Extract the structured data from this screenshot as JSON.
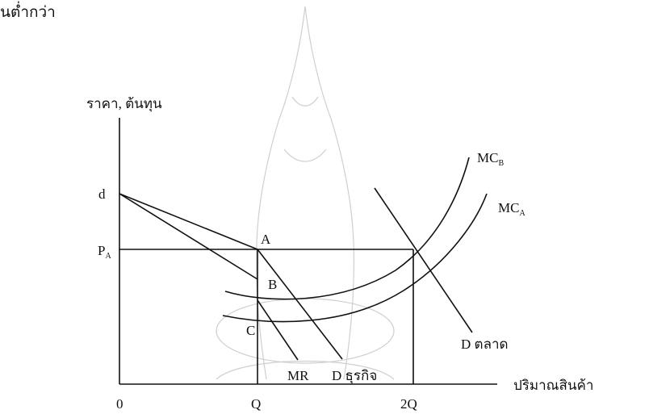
{
  "header_fragment": "นต่ำกว่า",
  "axes": {
    "y_label": "ราคา, ต้นทุน",
    "x_label": "ปริมาณสินค้า"
  },
  "points": {
    "d": "d",
    "a": "A",
    "b": "B",
    "c": "C",
    "origin": "0",
    "q": "Q",
    "two_q": "2Q"
  },
  "price_label": {
    "main": "P",
    "sub": "A"
  },
  "curves": {
    "mc_b": {
      "main": "MC",
      "sub": "B"
    },
    "mc_a": {
      "main": "MC",
      "sub": "A"
    },
    "mr": "MR",
    "d_firm": "D ธุรกิจ",
    "d_market": "D ตลาด"
  }
}
